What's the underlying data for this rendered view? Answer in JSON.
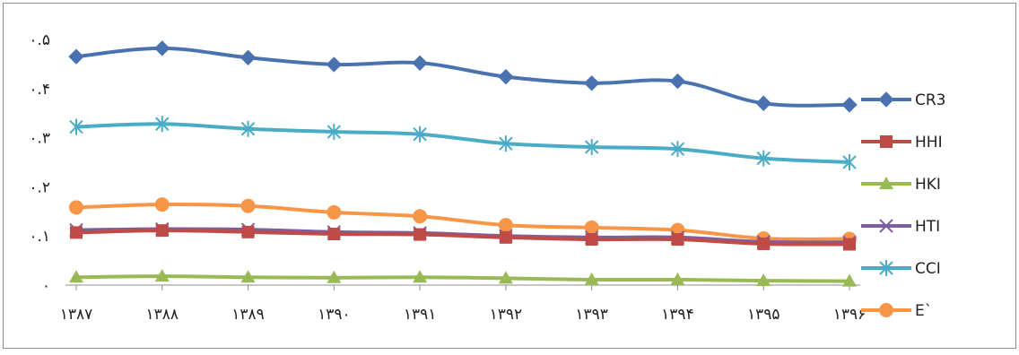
{
  "chart_data": {
    "type": "line",
    "title": "",
    "xlabel": "",
    "ylabel": "",
    "categories": [
      "۱۳۸۷",
      "۱۳۸۸",
      "۱۳۸۹",
      "۱۳۹۰",
      "۱۳۹۱",
      "۱۳۹۲",
      "۱۳۹۳",
      "۱۳۹۴",
      "۱۳۹۵",
      "۱۳۹۶"
    ],
    "yticks": [
      0,
      0.1,
      0.2,
      0.3,
      0.4,
      0.5
    ],
    "ytick_labels": [
      "۰",
      "۰.۱",
      "۰.۲",
      "۰.۳",
      "۰.۴",
      "۰.۵"
    ],
    "ylim": [
      0,
      0.5
    ],
    "grid": false,
    "legend_position": "right",
    "series": [
      {
        "name": "CR3",
        "color": "#4a72b0",
        "marker": "diamond",
        "values": [
          0.465,
          0.482,
          0.463,
          0.449,
          0.452,
          0.424,
          0.411,
          0.415,
          0.37,
          0.367
        ]
      },
      {
        "name": "HHI",
        "color": "#be4b48",
        "marker": "square",
        "values": [
          0.107,
          0.111,
          0.108,
          0.104,
          0.103,
          0.097,
          0.093,
          0.093,
          0.084,
          0.083
        ]
      },
      {
        "name": "HKI",
        "color": "#98b954",
        "marker": "triangle",
        "values": [
          0.016,
          0.018,
          0.016,
          0.015,
          0.016,
          0.014,
          0.011,
          0.011,
          0.009,
          0.008
        ]
      },
      {
        "name": "HTI",
        "color": "#7d5fa0",
        "marker": "x",
        "values": [
          0.112,
          0.114,
          0.113,
          0.108,
          0.106,
          0.1,
          0.097,
          0.097,
          0.088,
          0.087
        ]
      },
      {
        "name": "CCI",
        "color": "#4bacc6",
        "marker": "asterisk",
        "values": [
          0.322,
          0.328,
          0.318,
          0.312,
          0.307,
          0.288,
          0.281,
          0.277,
          0.258,
          0.25
        ]
      },
      {
        "name": "E`",
        "color": "#f79646",
        "marker": "circle",
        "values": [
          0.158,
          0.164,
          0.161,
          0.148,
          0.14,
          0.122,
          0.117,
          0.112,
          0.095,
          0.094
        ]
      }
    ]
  }
}
